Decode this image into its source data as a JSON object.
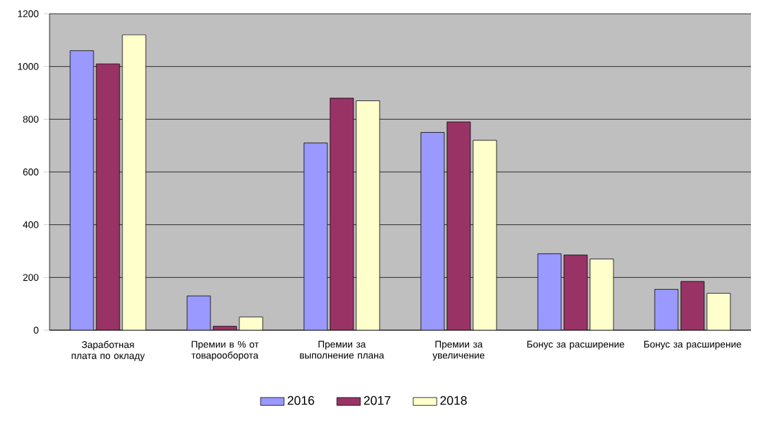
{
  "chart_data": {
    "type": "bar",
    "categories": [
      "Заработная плата по окладу",
      "Премии в % от товарооборота",
      "Премии за выполнение плана",
      "Премии за увеличение",
      "Бонус за расширение",
      "Бонус за расширение"
    ],
    "series": [
      {
        "name": "2016",
        "color": "#9999ff",
        "values": [
          1060,
          130,
          710,
          750,
          290,
          155
        ]
      },
      {
        "name": "2017",
        "color": "#993366",
        "values": [
          1010,
          15,
          880,
          790,
          285,
          185
        ]
      },
      {
        "name": "2018",
        "color": "#ffffcc",
        "values": [
          1120,
          50,
          870,
          720,
          270,
          140
        ]
      }
    ],
    "ylim": [
      0,
      1200
    ],
    "yticks": [
      0,
      200,
      400,
      600,
      800,
      1000,
      1200
    ],
    "grid": "y",
    "legend": "bottom"
  }
}
